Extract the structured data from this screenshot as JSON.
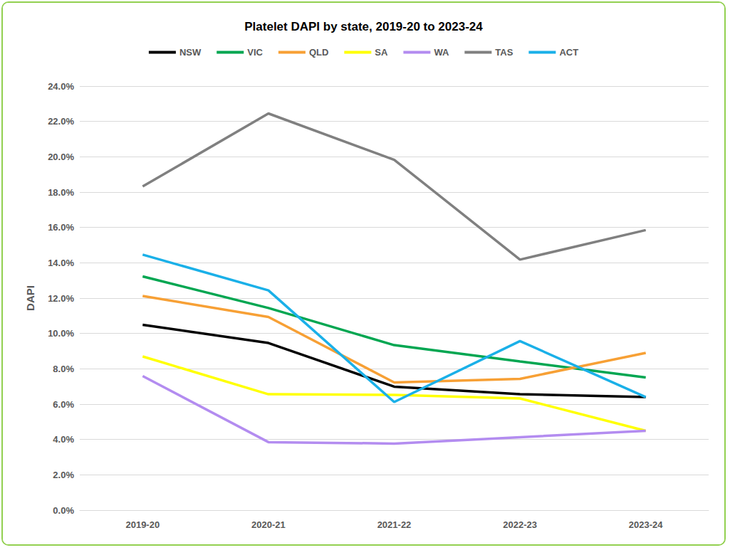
{
  "chart_data": {
    "type": "line",
    "title": "Platelet DAPI by state, 2019-20 to 2023-24",
    "y_label": "DAPI",
    "categories": [
      "2019-20",
      "2020-21",
      "2021-22",
      "2022-23",
      "2023-24"
    ],
    "series": [
      {
        "name": "NSW",
        "color": "#000000",
        "values": [
          10.49,
          9.46,
          6.99,
          6.56,
          6.4
        ]
      },
      {
        "name": "VIC",
        "color": "#00a651",
        "values": [
          13.23,
          11.44,
          9.34,
          8.42,
          7.51
        ]
      },
      {
        "name": "QLD",
        "color": "#f7a035",
        "values": [
          12.12,
          10.93,
          7.23,
          7.43,
          8.9
        ]
      },
      {
        "name": "SA",
        "color": "#ffff00",
        "values": [
          8.7,
          6.56,
          6.52,
          6.32,
          4.49
        ]
      },
      {
        "name": "WA",
        "color": "#b38cf0",
        "values": [
          7.59,
          3.85,
          3.77,
          4.13,
          4.49
        ]
      },
      {
        "name": "TAS",
        "color": "#808080",
        "values": [
          18.32,
          22.45,
          19.83,
          14.18,
          15.85
        ]
      },
      {
        "name": "ACT",
        "color": "#1ab0e8",
        "values": [
          14.46,
          12.44,
          6.12,
          9.57,
          6.4
        ]
      }
    ],
    "ylim": [
      0,
      24
    ],
    "yticks": [
      {
        "value": 0,
        "label": "0.0%"
      },
      {
        "value": 2,
        "label": "2.0%"
      },
      {
        "value": 4,
        "label": "4.0%"
      },
      {
        "value": 6,
        "label": "6.0%"
      },
      {
        "value": 8,
        "label": "8.0%"
      },
      {
        "value": 10,
        "label": "10.0%"
      },
      {
        "value": 12,
        "label": "12.0%"
      },
      {
        "value": 14,
        "label": "14.0%"
      },
      {
        "value": 16,
        "label": "16.0%"
      },
      {
        "value": 18,
        "label": "18.0%"
      },
      {
        "value": 20,
        "label": "20.0%"
      },
      {
        "value": 22,
        "label": "22.0%"
      },
      {
        "value": 24,
        "label": "24.0%"
      }
    ],
    "grid": true,
    "legend": "top",
    "marker": "none"
  }
}
